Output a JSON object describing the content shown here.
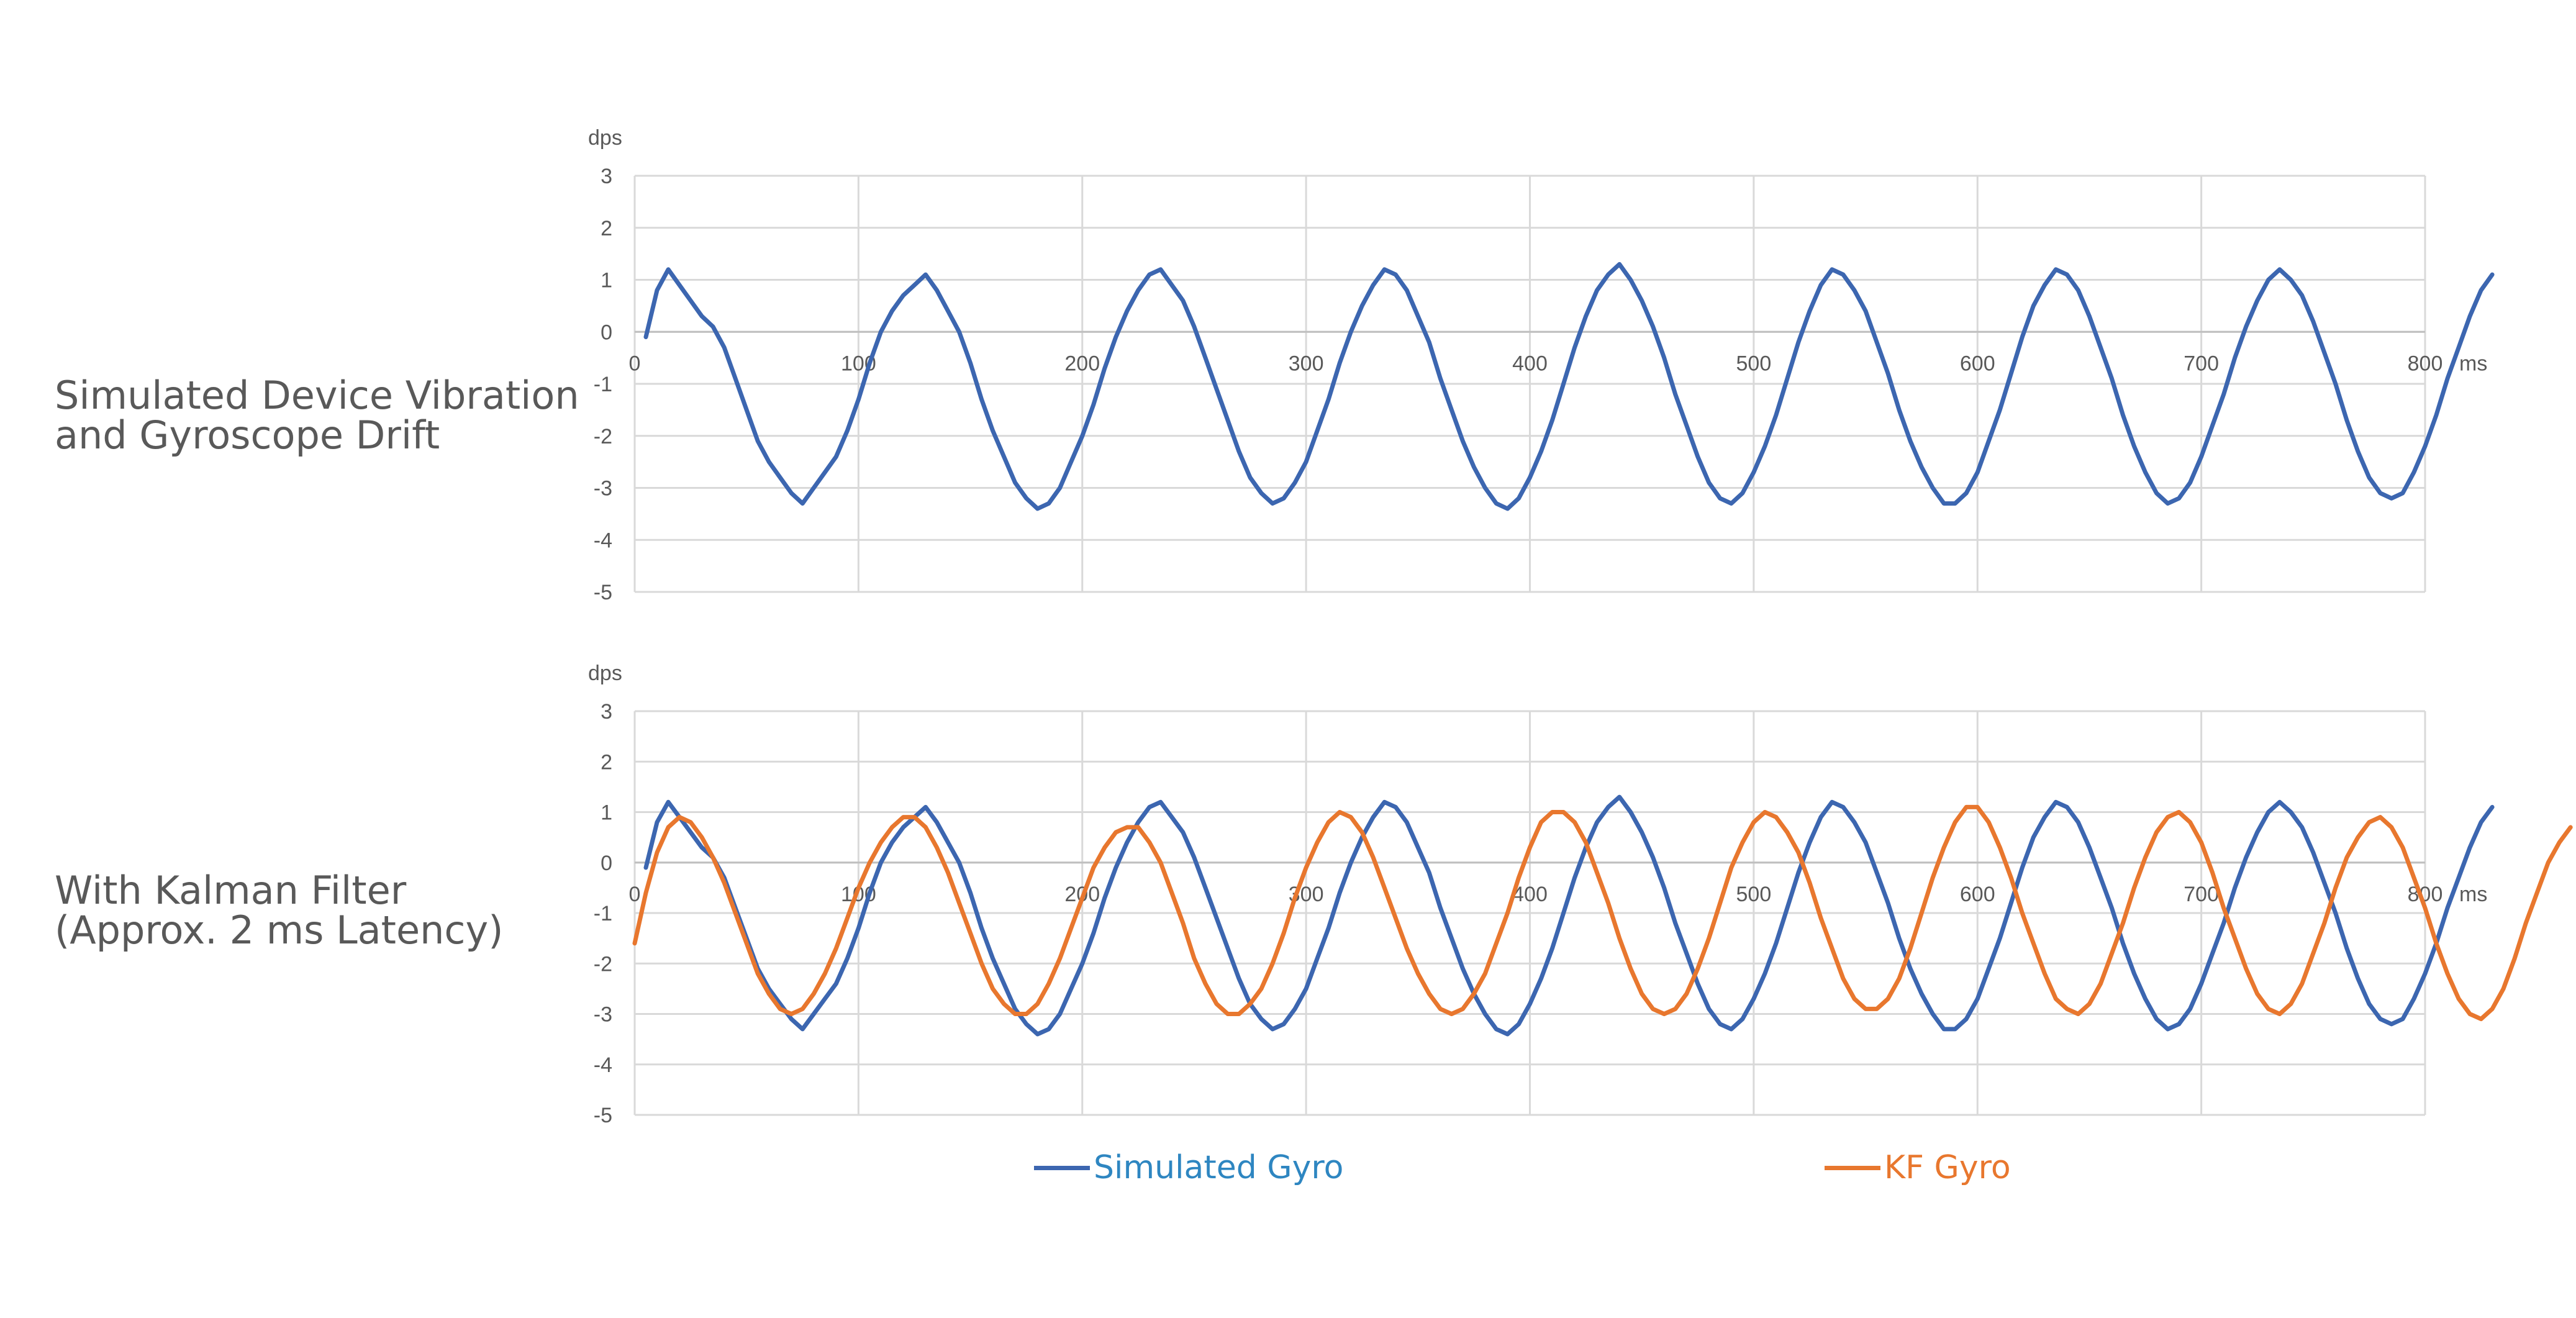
{
  "panels": [
    {
      "title_line1": "Simulated Device Vibration",
      "title_line2": "and Gyroscope Drift"
    },
    {
      "title_line1": "With Kalman Filter",
      "title_line2": "(Approx. 2 ms Latency)"
    }
  ],
  "legend": [
    {
      "label": "Simulated Gyro",
      "color": "#3c66b0",
      "text_color": "#2e86c1"
    },
    {
      "label": "KF Gyro",
      "color": "#e8772e",
      "text_color": "#e8772e"
    }
  ],
  "chart_data": [
    {
      "type": "line",
      "title": "Simulated Device Vibration and Gyroscope Drift",
      "ylabel": "dps",
      "xlabel": "ms",
      "xlim": [
        0,
        800
      ],
      "ylim": [
        -5,
        3
      ],
      "xticks": [
        0,
        100,
        200,
        300,
        400,
        500,
        600,
        700,
        800
      ],
      "yticks": [
        3,
        2,
        1,
        0,
        -1,
        -2,
        -3,
        -4,
        -5
      ],
      "grid": true,
      "series": [
        {
          "name": "Simulated Gyro",
          "color": "#3c66b0",
          "x_start": 5,
          "x_step": 5,
          "values": [
            -0.1,
            0.8,
            1.2,
            0.9,
            0.6,
            0.3,
            0.1,
            -0.3,
            -0.9,
            -1.5,
            -2.1,
            -2.5,
            -2.8,
            -3.1,
            -3.3,
            -3.0,
            -2.7,
            -2.4,
            -1.9,
            -1.3,
            -0.6,
            0.0,
            0.4,
            0.7,
            0.9,
            1.1,
            0.8,
            0.4,
            0.0,
            -0.6,
            -1.3,
            -1.9,
            -2.4,
            -2.9,
            -3.2,
            -3.4,
            -3.3,
            -3.0,
            -2.5,
            -2.0,
            -1.4,
            -0.7,
            -0.1,
            0.4,
            0.8,
            1.1,
            1.2,
            0.9,
            0.6,
            0.1,
            -0.5,
            -1.1,
            -1.7,
            -2.3,
            -2.8,
            -3.1,
            -3.3,
            -3.2,
            -2.9,
            -2.5,
            -1.9,
            -1.3,
            -0.6,
            0.0,
            0.5,
            0.9,
            1.2,
            1.1,
            0.8,
            0.3,
            -0.2,
            -0.9,
            -1.5,
            -2.1,
            -2.6,
            -3.0,
            -3.3,
            -3.4,
            -3.2,
            -2.8,
            -2.3,
            -1.7,
            -1.0,
            -0.3,
            0.3,
            0.8,
            1.1,
            1.3,
            1.0,
            0.6,
            0.1,
            -0.5,
            -1.2,
            -1.8,
            -2.4,
            -2.9,
            -3.2,
            -3.3,
            -3.1,
            -2.7,
            -2.2,
            -1.6,
            -0.9,
            -0.2,
            0.4,
            0.9,
            1.2,
            1.1,
            0.8,
            0.4,
            -0.2,
            -0.8,
            -1.5,
            -2.1,
            -2.6,
            -3.0,
            -3.3,
            -3.3,
            -3.1,
            -2.7,
            -2.1,
            -1.5,
            -0.8,
            -0.1,
            0.5,
            0.9,
            1.2,
            1.1,
            0.8,
            0.3,
            -0.3,
            -0.9,
            -1.6,
            -2.2,
            -2.7,
            -3.1,
            -3.3,
            -3.2,
            -2.9,
            -2.4,
            -1.8,
            -1.2,
            -0.5,
            0.1,
            0.6,
            1.0,
            1.2,
            1.0,
            0.7,
            0.2,
            -0.4,
            -1.0,
            -1.7,
            -2.3,
            -2.8,
            -3.1,
            -3.2,
            -3.1,
            -2.7,
            -2.2,
            -1.6,
            -0.9,
            -0.3,
            0.3,
            0.8,
            1.1
          ]
        },
        {
          "name": "",
          "color": "#3c66b0",
          "values": []
        }
      ]
    },
    {
      "type": "line",
      "title": "With Kalman Filter (Approx. 2 ms Latency)",
      "ylabel": "dps",
      "xlabel": "ms",
      "xlim": [
        0,
        800
      ],
      "ylim": [
        -5,
        3
      ],
      "xticks": [
        0,
        100,
        200,
        300,
        400,
        500,
        600,
        700,
        800
      ],
      "yticks": [
        3,
        2,
        1,
        0,
        -1,
        -2,
        -3,
        -4,
        -5
      ],
      "grid": true,
      "series": [
        {
          "name": "Simulated Gyro",
          "color": "#3c66b0",
          "same_as_panel_1": true,
          "values": []
        },
        {
          "name": "KF Gyro",
          "color": "#e8772e",
          "x_start": 0,
          "x_step": 5,
          "values": [
            -1.6,
            -0.6,
            0.2,
            0.7,
            0.9,
            0.8,
            0.5,
            0.1,
            -0.4,
            -1.0,
            -1.6,
            -2.2,
            -2.6,
            -2.9,
            -3.0,
            -2.9,
            -2.6,
            -2.2,
            -1.7,
            -1.1,
            -0.5,
            0.0,
            0.4,
            0.7,
            0.9,
            0.9,
            0.7,
            0.3,
            -0.2,
            -0.8,
            -1.4,
            -2.0,
            -2.5,
            -2.8,
            -3.0,
            -3.0,
            -2.8,
            -2.4,
            -1.9,
            -1.3,
            -0.7,
            -0.1,
            0.3,
            0.6,
            0.7,
            0.7,
            0.4,
            0.0,
            -0.6,
            -1.2,
            -1.9,
            -2.4,
            -2.8,
            -3.0,
            -3.0,
            -2.8,
            -2.5,
            -2.0,
            -1.4,
            -0.7,
            -0.1,
            0.4,
            0.8,
            1.0,
            0.9,
            0.6,
            0.1,
            -0.5,
            -1.1,
            -1.7,
            -2.2,
            -2.6,
            -2.9,
            -3.0,
            -2.9,
            -2.6,
            -2.2,
            -1.6,
            -1.0,
            -0.3,
            0.3,
            0.8,
            1.0,
            1.0,
            0.8,
            0.4,
            -0.2,
            -0.8,
            -1.5,
            -2.1,
            -2.6,
            -2.9,
            -3.0,
            -2.9,
            -2.6,
            -2.1,
            -1.5,
            -0.8,
            -0.1,
            0.4,
            0.8,
            1.0,
            0.9,
            0.6,
            0.2,
            -0.4,
            -1.1,
            -1.7,
            -2.3,
            -2.7,
            -2.9,
            -2.9,
            -2.7,
            -2.3,
            -1.7,
            -1.0,
            -0.3,
            0.3,
            0.8,
            1.1,
            1.1,
            0.8,
            0.3,
            -0.3,
            -1.0,
            -1.6,
            -2.2,
            -2.7,
            -2.9,
            -3.0,
            -2.8,
            -2.4,
            -1.8,
            -1.2,
            -0.5,
            0.1,
            0.6,
            0.9,
            1.0,
            0.8,
            0.4,
            -0.2,
            -0.9,
            -1.5,
            -2.1,
            -2.6,
            -2.9,
            -3.0,
            -2.8,
            -2.4,
            -1.8,
            -1.2,
            -0.5,
            0.1,
            0.5,
            0.8,
            0.9,
            0.7,
            0.3,
            -0.3,
            -0.9,
            -1.6,
            -2.2,
            -2.7,
            -3.0,
            -3.1,
            -2.9,
            -2.5,
            -1.9,
            -1.2,
            -0.6,
            0.0,
            0.4,
            0.7
          ]
        }
      ]
    }
  ]
}
